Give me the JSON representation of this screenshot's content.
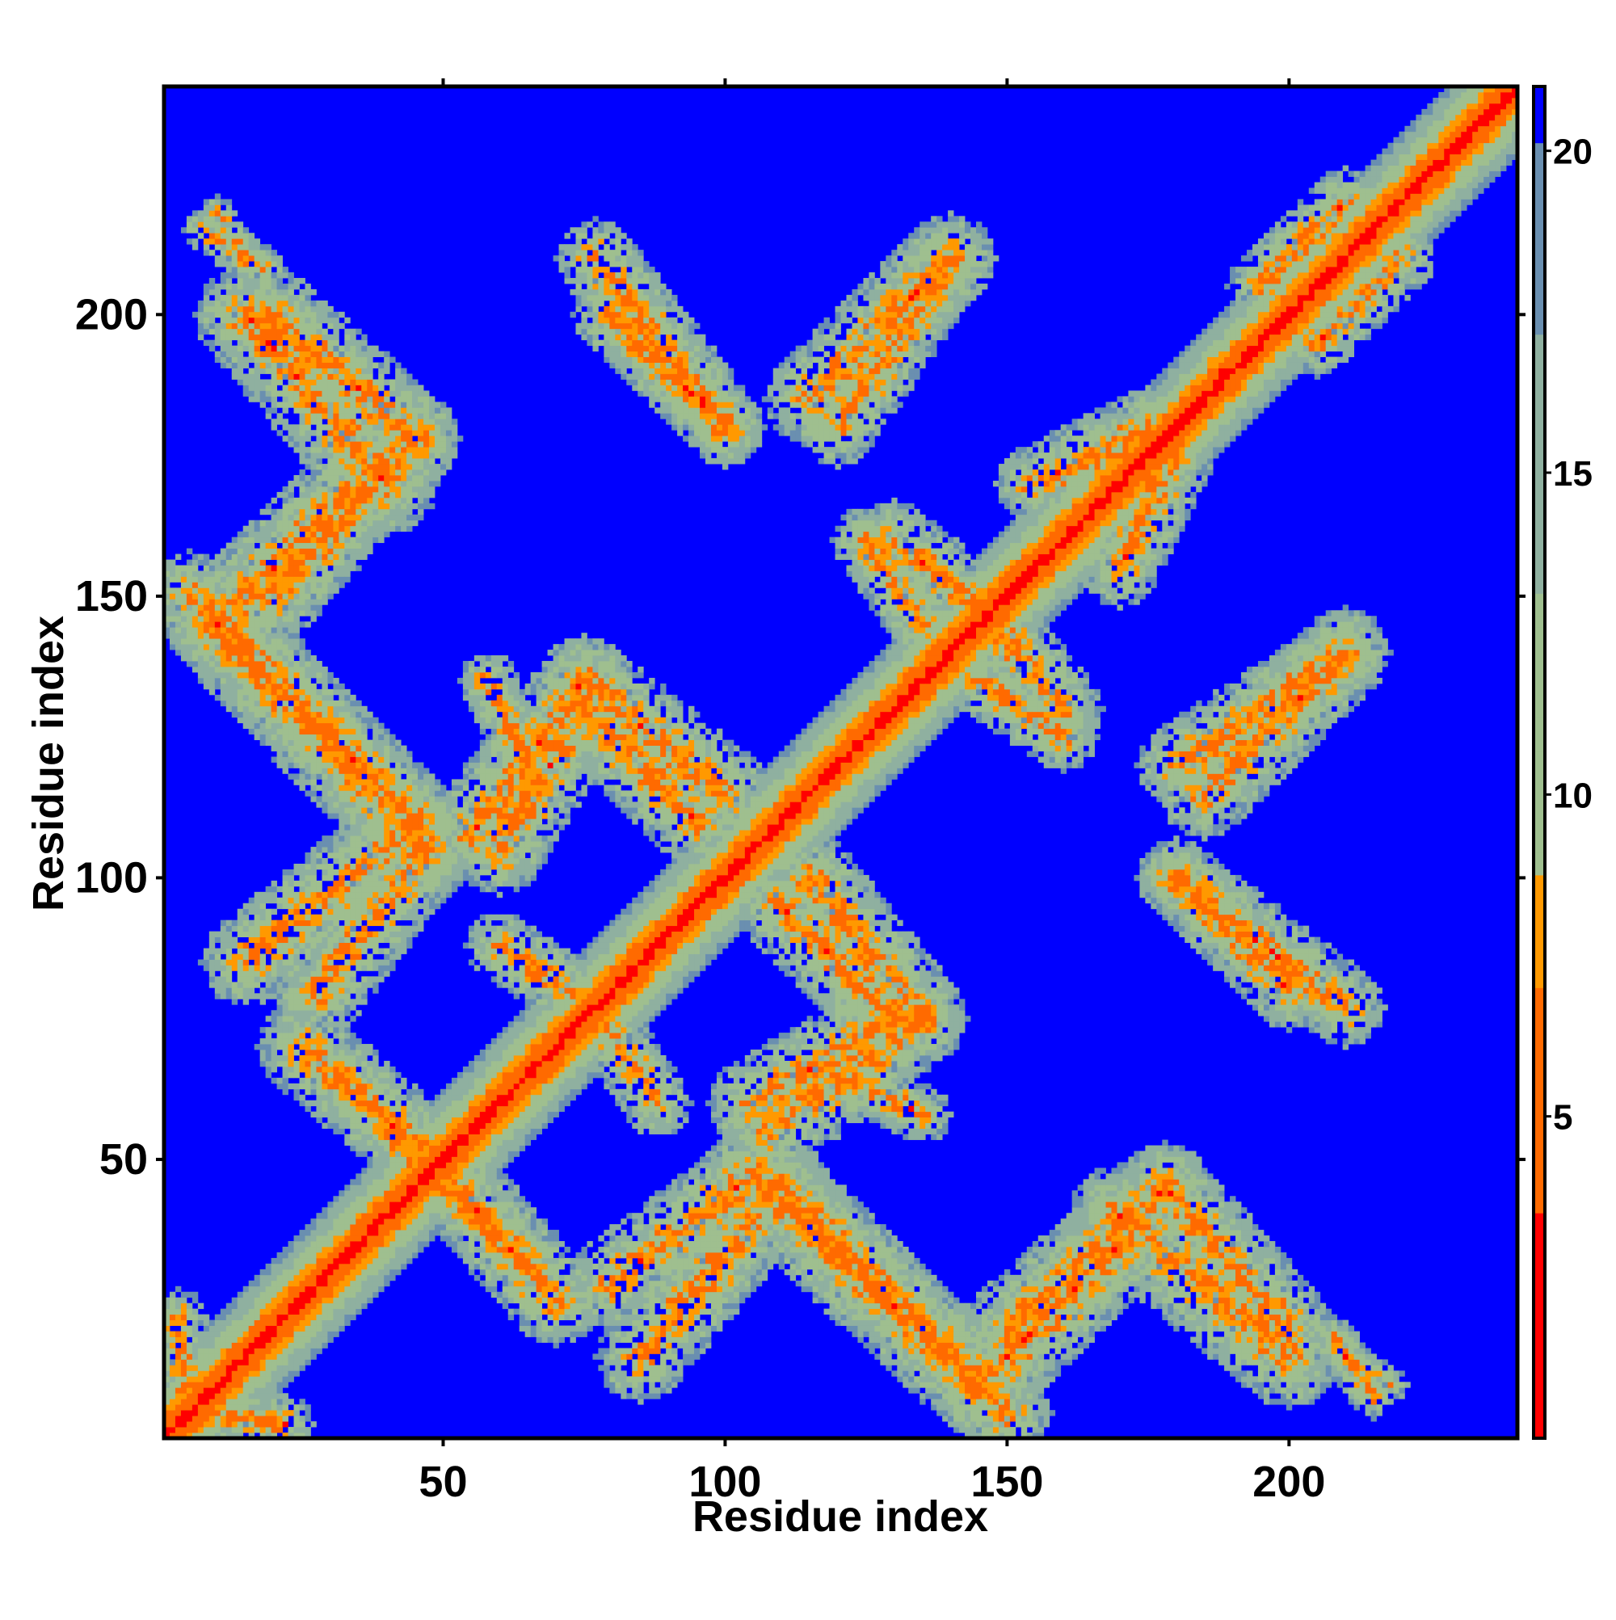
{
  "chart_data": {
    "type": "heatmap",
    "title": "",
    "xlabel": "Residue index",
    "ylabel": "Residue index",
    "n_residues": 240,
    "xlim": [
      1,
      240
    ],
    "ylim": [
      1,
      240
    ],
    "x_ticks": [
      50,
      100,
      150,
      200
    ],
    "y_ticks": [
      50,
      100,
      150,
      200
    ],
    "colorbar": {
      "min": 0,
      "max": 21,
      "ticks": [
        5,
        10,
        15,
        20
      ],
      "colors": {
        "low": "#ff0000",
        "mid_low": "#ff9900",
        "mid": "#9fbf8f",
        "high": "#6a8fb0",
        "background": "#0000ff"
      }
    },
    "distance_cutoff": 21,
    "diagonal": {
      "from": 1,
      "to": 240,
      "band_width": 12
    },
    "contact_bands": [
      {
        "start": [
          5,
          150
        ],
        "end": [
          45,
          110
        ],
        "width": 8
      },
      {
        "start": [
          20,
          200
        ],
        "end": [
          45,
          178
        ],
        "width": 8
      },
      {
        "start": [
          20,
          150
        ],
        "end": [
          45,
          178
        ],
        "width": 8
      },
      {
        "start": [
          8,
          215
        ],
        "end": [
          18,
          208
        ],
        "width": 4
      },
      {
        "start": [
          15,
          85
        ],
        "end": [
          45,
          110
        ],
        "width": 8
      },
      {
        "start": [
          25,
          70
        ],
        "end": [
          50,
          48
        ],
        "width": 8
      },
      {
        "start": [
          5,
          5
        ],
        "end": [
          22,
          3
        ],
        "width": 5
      },
      {
        "start": [
          50,
          45
        ],
        "end": [
          65,
          32
        ],
        "width": 6
      },
      {
        "start": [
          55,
          108
        ],
        "end": [
          75,
          135
        ],
        "width": 8
      },
      {
        "start": [
          75,
          135
        ],
        "end": [
          100,
          115
        ],
        "width": 8
      },
      {
        "start": [
          60,
          88
        ],
        "end": [
          75,
          78
        ],
        "width": 6
      },
      {
        "start": [
          80,
          200
        ],
        "end": [
          100,
          180
        ],
        "width": 7
      },
      {
        "start": [
          80,
          28
        ],
        "end": [
          105,
          47
        ],
        "width": 8
      },
      {
        "start": [
          105,
          47
        ],
        "end": [
          145,
          10
        ],
        "width": 9
      },
      {
        "start": [
          105,
          60
        ],
        "end": [
          130,
          75
        ],
        "width": 8
      },
      {
        "start": [
          110,
          95
        ],
        "end": [
          130,
          75
        ],
        "width": 8
      },
      {
        "start": [
          115,
          185
        ],
        "end": [
          140,
          210
        ],
        "width": 8
      },
      {
        "start": [
          130,
          160
        ],
        "end": [
          145,
          148
        ],
        "width": 7
      },
      {
        "start": [
          145,
          135
        ],
        "end": [
          160,
          125
        ],
        "width": 6
      },
      {
        "start": [
          145,
          10
        ],
        "end": [
          170,
          35
        ],
        "width": 9
      },
      {
        "start": [
          170,
          40
        ],
        "end": [
          200,
          15
        ],
        "width": 9
      },
      {
        "start": [
          155,
          170
        ],
        "end": [
          175,
          180
        ],
        "width": 7
      },
      {
        "start": [
          175,
          170
        ],
        "end": [
          188,
          190
        ],
        "width": 6
      },
      {
        "start": [
          180,
          100
        ],
        "end": [
          210,
          77
        ],
        "width": 7
      },
      {
        "start": [
          180,
          120
        ],
        "end": [
          210,
          140
        ],
        "width": 7
      },
      {
        "start": [
          205,
          195
        ],
        "end": [
          220,
          210
        ],
        "width": 6
      },
      {
        "start": [
          210,
          15
        ],
        "end": [
          218,
          10
        ],
        "width": 3
      },
      {
        "start": [
          120,
          65
        ],
        "end": [
          135,
          58
        ],
        "width": 5
      }
    ]
  }
}
